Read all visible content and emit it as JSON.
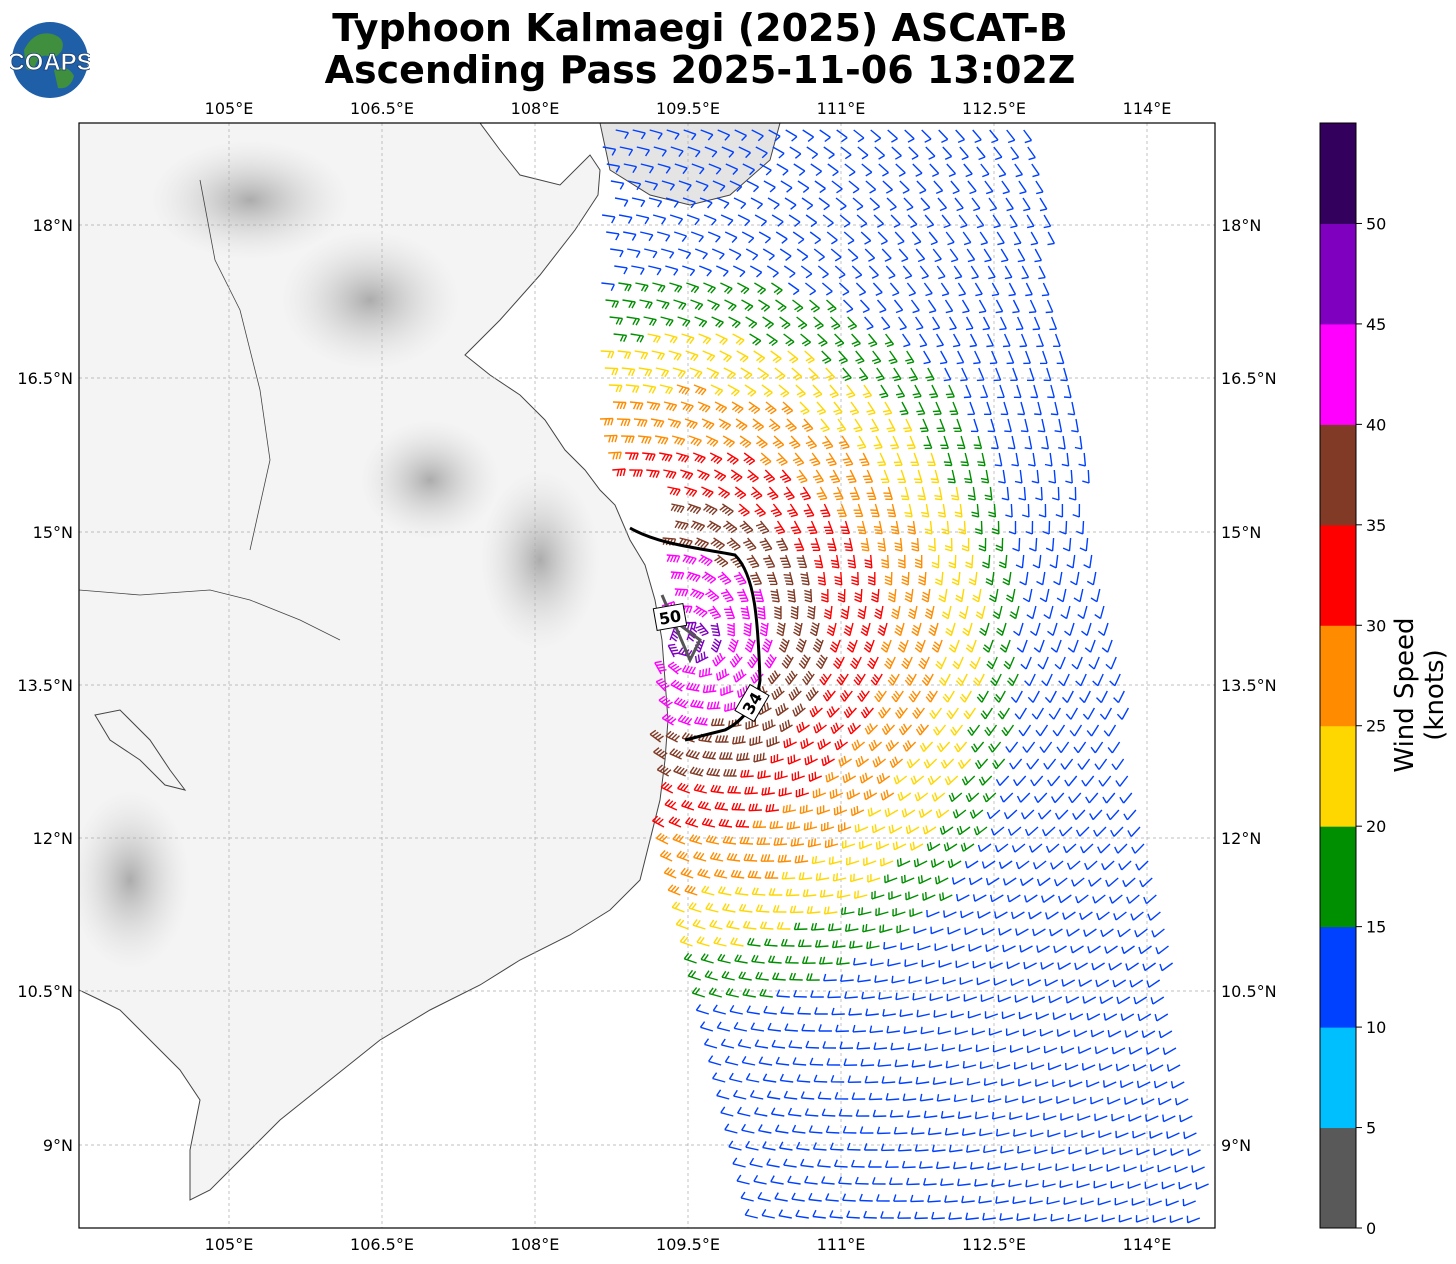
{
  "title": {
    "line1": "Typhoon Kalmaegi (2025) ASCAT-B",
    "line2": "Ascending Pass 2025-11-06 13:02Z"
  },
  "logo": {
    "text": "COAPS"
  },
  "map": {
    "lon_ticks": [
      "105°E",
      "106.5°E",
      "108°E",
      "109.5°E",
      "111°E",
      "112.5°E",
      "114°E"
    ],
    "lat_ticks": [
      "18°N",
      "16.5°N",
      "15°N",
      "13.5°N",
      "12°N",
      "10.5°N",
      "9°N"
    ],
    "contour_labels": [
      "50",
      "34"
    ]
  },
  "colorbar": {
    "title": "Wind Speed (knots)",
    "ticks": [
      "0",
      "5",
      "10",
      "15",
      "20",
      "25",
      "30",
      "35",
      "40",
      "45",
      "50"
    ],
    "colors": [
      "#595959",
      "#00bfff",
      "#0040ff",
      "#008f00",
      "#ffd700",
      "#ff8c00",
      "#ff0000",
      "#803a26",
      "#ff00ff",
      "#8000c0",
      "#33005e"
    ]
  }
}
